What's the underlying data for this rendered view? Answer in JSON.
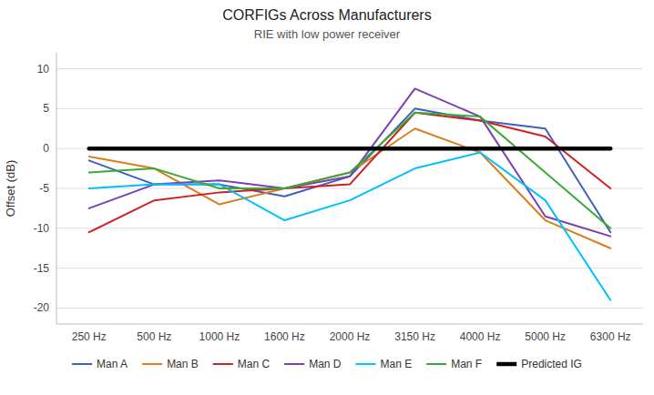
{
  "chart_data": {
    "type": "line",
    "title": "CORFIGs Across Manufacturers",
    "subtitle": "RIE with low power receiver",
    "y_label": "Offset (dB)",
    "categories": [
      "250 Hz",
      "500 Hz",
      "1000 Hz",
      "1600 Hz",
      "2000 Hz",
      "3150 Hz",
      "4000 Hz",
      "5000 Hz",
      "6300 Hz"
    ],
    "series": [
      {
        "name": "Man A",
        "color": "#3F5FBF",
        "line_style": "solid",
        "values": [
          -1.5,
          -4.5,
          -4.5,
          -6.0,
          -3.5,
          5.0,
          3.5,
          2.5,
          -10.5
        ]
      },
      {
        "name": "Man B",
        "color": "#D97E1A",
        "line_style": "solid",
        "values": [
          -1.0,
          -2.5,
          -7.0,
          -5.0,
          -3.0,
          2.5,
          -0.5,
          -9.0,
          -12.5
        ]
      },
      {
        "name": "Man C",
        "color": "#CC2222",
        "line_style": "solid",
        "values": [
          -10.5,
          -6.5,
          -5.5,
          -5.0,
          -4.5,
          4.5,
          3.5,
          1.5,
          -5.0
        ]
      },
      {
        "name": "Man D",
        "color": "#7B3FB5",
        "line_style": "solid",
        "values": [
          -7.5,
          -4.5,
          -4.0,
          -5.0,
          -3.5,
          7.5,
          4.0,
          -8.5,
          -11.0
        ]
      },
      {
        "name": "Man E",
        "color": "#00BFFF",
        "line_style": "solid",
        "values": [
          -5.0,
          -4.5,
          -4.5,
          -9.0,
          -6.5,
          -2.5,
          -0.5,
          -6.5,
          -19.0
        ]
      },
      {
        "name": "Man F",
        "color": "#3AAA35",
        "line_style": "solid",
        "values": [
          -3.0,
          -2.5,
          -5.0,
          -5.0,
          -3.0,
          4.5,
          4.0,
          -3.0,
          -10.0
        ]
      },
      {
        "name": "Predicted IG",
        "color": "#000000",
        "line_style": "thick",
        "values": [
          0,
          0,
          0,
          0,
          0,
          0,
          0,
          0,
          0
        ]
      }
    ],
    "ylim": [
      -22,
      12
    ],
    "yticks": [
      -20,
      -15,
      -10,
      -5,
      0,
      5,
      10
    ],
    "grid": true,
    "legend": "bottom"
  }
}
